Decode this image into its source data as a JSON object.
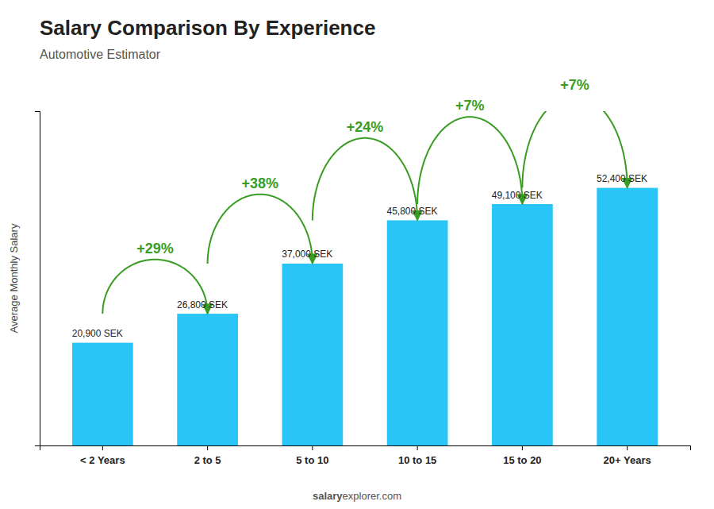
{
  "chart_data": {
    "type": "bar",
    "title": "Salary Comparison By Experience",
    "subtitle": "Automotive Estimator",
    "categories": [
      "< 2 Years",
      "2 to 5",
      "5 to 10",
      "10 to 15",
      "15 to 20",
      "20+ Years"
    ],
    "values": [
      20900,
      26800,
      37000,
      45800,
      49100,
      52400
    ],
    "value_labels": [
      "20,900 SEK",
      "26,800 SEK",
      "37,000 SEK",
      "45,800 SEK",
      "49,100 SEK",
      "52,400 SEK"
    ],
    "data_labels": true,
    "color": "#29C5F6",
    "ylabel": "Average Monthly Salary",
    "ylim": [
      0,
      68000
    ],
    "tick_labels": "x",
    "annotations": [
      "+29%",
      "+38%",
      "+24%",
      "+7%",
      "+7%"
    ],
    "footer": [
      "salary",
      "explorer.com"
    ]
  }
}
